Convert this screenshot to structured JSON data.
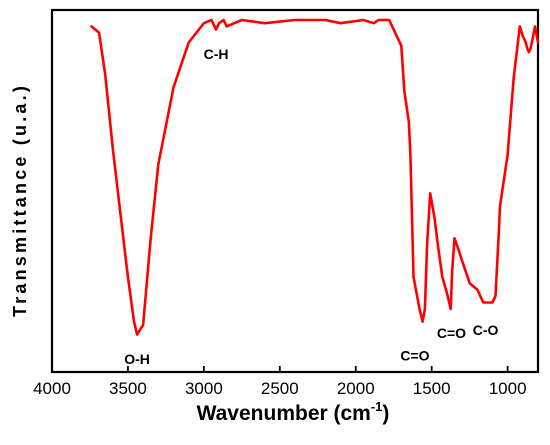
{
  "chart_data": {
    "type": "line",
    "xlabel": "Wavenumber (cm",
    "xlabel_sup": "-1",
    "xlabel_close": ")",
    "ylabel": "Transmittance (u.a.)",
    "xlim": [
      4000,
      800
    ],
    "x_reversed": true,
    "yaxis_ticks_labeled": false,
    "x_ticks": [
      4000,
      3500,
      3000,
      2500,
      2000,
      1500,
      1000
    ],
    "x_tick_labels": [
      "4000",
      "3500",
      "3000",
      "2500",
      "2000",
      "1500",
      "1000"
    ],
    "y_range": [
      0,
      100
    ],
    "line_color": "#ff0000",
    "series": [
      {
        "x": [
          3740,
          3690,
          3650,
          3600,
          3550,
          3500,
          3460,
          3440,
          3400,
          3350,
          3300,
          3200,
          3100,
          3000,
          2950,
          2920,
          2900,
          2870,
          2850,
          2750,
          2600,
          2400,
          2250,
          2200,
          2100,
          1950,
          1880,
          1850,
          1780,
          1740,
          1700,
          1680,
          1650,
          1640,
          1630,
          1620,
          1600,
          1580,
          1560,
          1545,
          1530,
          1510,
          1480,
          1460,
          1430,
          1400,
          1385,
          1375,
          1365,
          1350,
          1320,
          1300,
          1250,
          1200,
          1180,
          1160,
          1100,
          1080,
          1060,
          1050,
          1000,
          960,
          920,
          900,
          880,
          870,
          860,
          850,
          840,
          820,
          800
        ],
        "y": [
          98,
          96,
          83,
          60,
          40,
          20,
          6,
          2,
          5,
          32,
          55,
          79,
          93,
          99,
          100,
          97,
          99,
          100,
          98,
          100,
          99,
          100,
          100,
          100,
          99,
          100,
          99,
          100,
          100,
          96,
          92,
          78,
          68,
          58,
          40,
          20,
          15,
          10,
          6,
          10,
          30,
          46,
          38,
          30,
          20,
          15,
          12,
          10,
          22,
          32,
          28,
          25,
          18,
          16,
          14,
          12,
          12,
          14,
          32,
          42,
          58,
          82,
          98,
          95,
          93,
          91,
          90,
          91,
          93,
          98,
          93
        ]
      }
    ],
    "annotations": [
      {
        "text": "O-H",
        "x": 3440,
        "y": -4
      },
      {
        "text": "C-H",
        "x": 2920,
        "y": 91
      },
      {
        "text": "C=O",
        "x": 1610,
        "y": -3
      },
      {
        "text": "C=O",
        "x": 1370,
        "y": 4
      },
      {
        "text": "C-O",
        "x": 1145,
        "y": 5
      }
    ]
  }
}
